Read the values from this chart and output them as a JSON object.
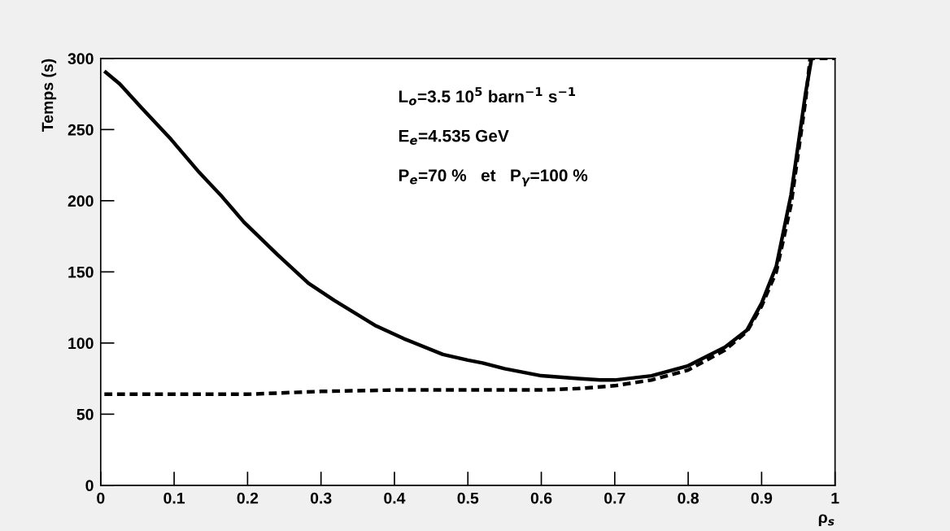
{
  "chart_data": {
    "type": "line",
    "ylabel": "Temps (s)",
    "xlabel": "ρ$_{s}$",
    "annotations": [
      "L$_{o}$=3.5 10$^{5}$ barn$^{−1}$ s$^{−1}$",
      "E$_{e}$=4.535 GeV",
      "P$_{e}$=70 %   et   P$_{γ}$=100 %"
    ],
    "xlim": [
      0,
      1
    ],
    "ylim": [
      0,
      300
    ],
    "xticks": [
      0,
      0.1,
      0.2,
      0.3,
      0.4,
      0.5,
      0.6,
      0.7,
      0.8,
      0.9,
      1
    ],
    "yticks": [
      0,
      50,
      100,
      150,
      200,
      250,
      300
    ],
    "grid": false,
    "legend": false,
    "series": [
      {
        "color": "#000000",
        "line_style": "solid",
        "x": [
          0.005,
          0.026,
          0.056,
          0.096,
          0.134,
          0.165,
          0.195,
          0.241,
          0.283,
          0.318,
          0.375,
          0.413,
          0.466,
          0.5,
          0.52,
          0.55,
          0.6,
          0.65,
          0.68,
          0.7,
          0.75,
          0.8,
          0.85,
          0.88,
          0.9,
          0.92,
          0.94,
          0.96,
          0.968
        ],
        "values": [
          291,
          282,
          265,
          243,
          220,
          203,
          185,
          162,
          142,
          130,
          112,
          103,
          92,
          88,
          86,
          82,
          77,
          75,
          74,
          74,
          77,
          84,
          97,
          109,
          128,
          154,
          204,
          276,
          300
        ]
      },
      {
        "color": "#000000",
        "line_style": "dashed",
        "x": [
          0.005,
          0.1,
          0.2,
          0.3,
          0.4,
          0.5,
          0.6,
          0.65,
          0.7,
          0.75,
          0.8,
          0.85,
          0.88,
          0.9,
          0.92,
          0.94,
          0.96,
          0.966,
          0.975,
          1.0
        ],
        "values": [
          64,
          64,
          64,
          66,
          67,
          67,
          67,
          68,
          70,
          74,
          81,
          95,
          108,
          126,
          150,
          197,
          271,
          300,
          300,
          300
        ]
      }
    ]
  }
}
